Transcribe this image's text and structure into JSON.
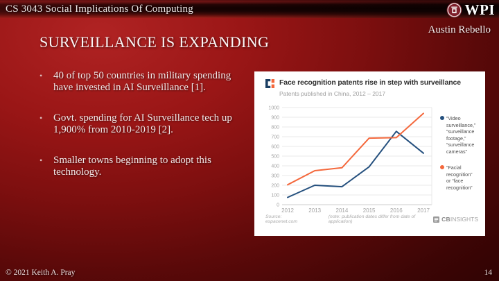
{
  "slide": {
    "header": {
      "course_title": "CS 3043 Social Implications Of Computing",
      "logo_text": "WPI"
    },
    "author": "Austin Rebello",
    "title": "SURVEILLANCE IS EXPANDING",
    "bullet_char": "•",
    "bullets": [
      "40 of top 50 countries in military spending have invested in AI Surveillance [1].",
      "Govt. spending for AI Surveillance tech up 1,900% from 2010-2019 [2].",
      "Smaller towns beginning to adopt this technology."
    ],
    "footer": {
      "copyright": "© 2021 Keith A. Pray",
      "page_number": "14"
    }
  },
  "chart_data": {
    "type": "line",
    "title": "Face recognition patents rise in step with surveillance",
    "subtitle": "Patents published in China, 2012 – 2017",
    "source": "Source: espacenet.com",
    "note": "(note: publication dates differ from date of application)",
    "brand": {
      "bold": "CB",
      "rest": "INSIGHTS"
    },
    "x": [
      "2012",
      "2013",
      "2014",
      "2015",
      "2016",
      "2017"
    ],
    "series": [
      {
        "name": "“Video surveillance,” “surveillance footage,” “surveillance cameras”",
        "color": "#25507e",
        "values": [
          75,
          200,
          185,
          390,
          755,
          530
        ]
      },
      {
        "name": "“Facial recognition” or “face recognition”",
        "color": "#f4683c",
        "values": [
          205,
          350,
          380,
          685,
          690,
          940
        ]
      }
    ],
    "ylim": [
      0,
      1000
    ],
    "ytick_step": 100,
    "grid": true,
    "legend_position": "right",
    "colors": {
      "grid": "#e9e9e9",
      "axis": "#cccccc",
      "tick_text": "#a3a3a3"
    }
  }
}
